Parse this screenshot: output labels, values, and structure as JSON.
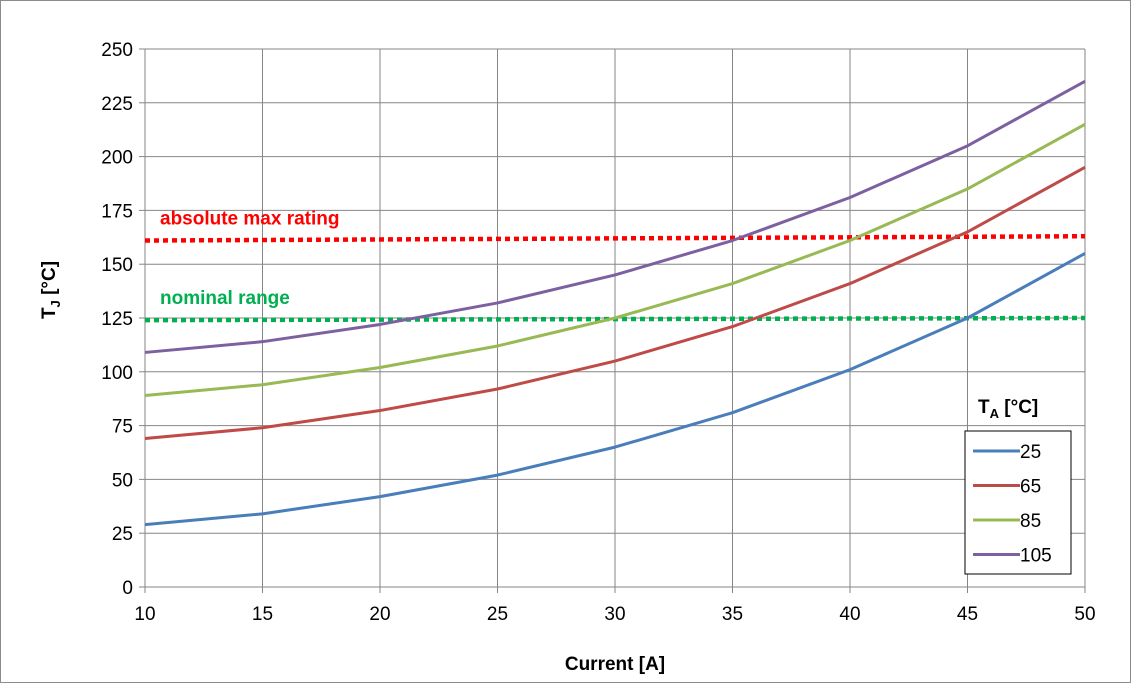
{
  "chart_data": {
    "type": "line",
    "xlabel": {
      "main": "Current [A]"
    },
    "ylabel": {
      "main": "T",
      "sub": "J",
      "suffix": " [°C]"
    },
    "xlim": [
      10,
      50
    ],
    "ylim": [
      0,
      250
    ],
    "x_ticks": [
      10,
      15,
      20,
      25,
      30,
      35,
      40,
      45,
      50
    ],
    "y_ticks": [
      0,
      25,
      50,
      75,
      100,
      125,
      150,
      175,
      200,
      225,
      250
    ],
    "grid": true,
    "x": [
      10,
      15,
      20,
      25,
      30,
      35,
      40,
      45,
      50
    ],
    "series": [
      {
        "name": "25",
        "color": "#4a7ebb",
        "values": [
          29,
          34,
          42,
          52,
          65,
          81,
          101,
          125,
          155
        ]
      },
      {
        "name": "65",
        "color": "#be4b48",
        "values": [
          69,
          74,
          82,
          92,
          105,
          121,
          141,
          165,
          195
        ]
      },
      {
        "name": "85",
        "color": "#98b954",
        "values": [
          89,
          94,
          102,
          112,
          125,
          141,
          161,
          185,
          215
        ]
      },
      {
        "name": "105",
        "color": "#7d60a0",
        "values": [
          109,
          114,
          122,
          132,
          145,
          161,
          181,
          205,
          235
        ]
      }
    ],
    "legend": {
      "title_main": "T",
      "title_sub": "A",
      "title_suffix": " [°C]",
      "placement": "bottom-right"
    },
    "reference_lines": [
      {
        "label": "absolute max rating",
        "color": "#ff0000",
        "y_start": 161,
        "y_end": 163,
        "style": "dotted"
      },
      {
        "label": "nominal range",
        "color": "#00b050",
        "y_start": 124,
        "y_end": 125,
        "style": "dotted"
      }
    ]
  }
}
